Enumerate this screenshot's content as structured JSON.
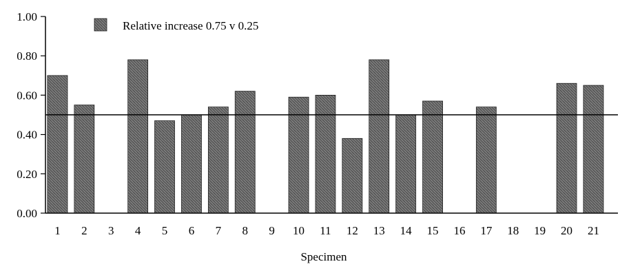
{
  "chart_data": {
    "type": "bar",
    "categories": [
      "1",
      "2",
      "3",
      "4",
      "5",
      "6",
      "7",
      "8",
      "9",
      "10",
      "11",
      "12",
      "13",
      "14",
      "15",
      "16",
      "17",
      "18",
      "19",
      "20",
      "21"
    ],
    "series": [
      {
        "name": "Relative increase 0.75 v 0.25",
        "values": [
          0.7,
          0.55,
          null,
          0.78,
          0.47,
          0.5,
          0.54,
          0.62,
          null,
          0.59,
          0.6,
          0.38,
          0.78,
          0.5,
          0.57,
          null,
          0.54,
          null,
          null,
          0.66,
          0.65
        ]
      }
    ],
    "xlabel": "Specimen",
    "ylabel": "",
    "ylim": [
      0,
      1.0
    ],
    "yticks": [
      "0.00",
      "0.20",
      "0.40",
      "0.60",
      "0.80",
      "1.00"
    ],
    "reference_line": 0.5,
    "legend_position": "top-left",
    "grid": false,
    "colors": {
      "bar": "#5a5a5a",
      "axis": "#000000",
      "reference_line": "#000000"
    }
  }
}
